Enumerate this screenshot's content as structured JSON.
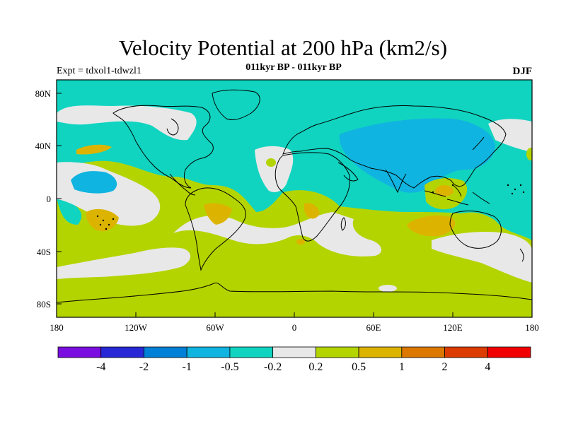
{
  "title": "Velocity Potential at 200 hPa (km2/s)",
  "subtitle": "011kyr BP - 011kyr BP",
  "expt_label": "Expt = tdxol1-tdwzl1",
  "season": "DJF",
  "map": {
    "lon_range": [
      -180,
      180
    ],
    "lat_range": [
      -90,
      90
    ],
    "lon_ticks": [
      "180",
      "120W",
      "60W",
      "0",
      "60E",
      "120E",
      "180"
    ],
    "lat_ticks": [
      "80N",
      "40N",
      "0",
      "40S",
      "80S"
    ]
  },
  "colorbar": {
    "colors": [
      "#7a0ee0",
      "#2828d6",
      "#0080d6",
      "#10b4e0",
      "#10d4c0",
      "#e8e8e8",
      "#b4d400",
      "#dcb400",
      "#dc7800",
      "#dc3c00",
      "#f00000"
    ],
    "labels": [
      "-4",
      "-2",
      "-1",
      "-0.5",
      "-0.2",
      "0.2",
      "0.5",
      "1",
      "2",
      "4"
    ]
  },
  "field_colors": {
    "background": "#b4d400",
    "neutral": "#e8e8e8",
    "cyan": "#10d4c0",
    "blue": "#10b4e0",
    "orange": "#dcb400"
  }
}
